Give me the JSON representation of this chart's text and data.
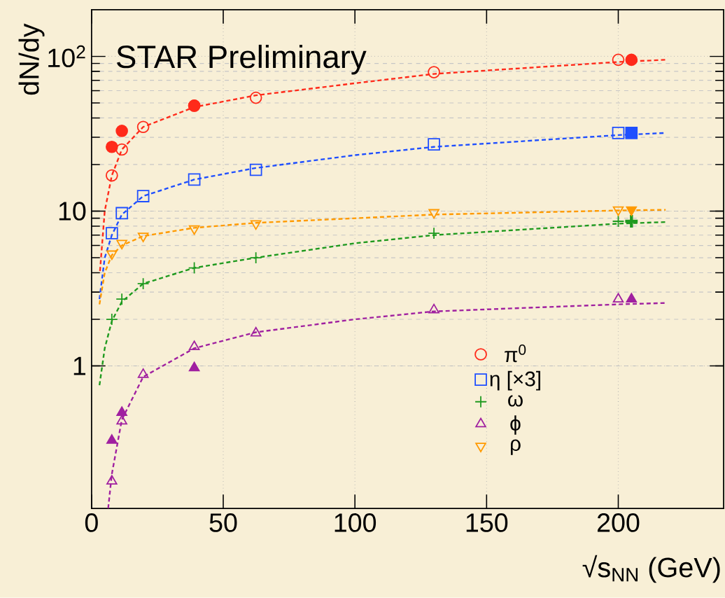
{
  "chart_data": {
    "type": "scatter",
    "xlabel": "√s$_{NN}$ (GeV)",
    "ylabel": "dN/dy",
    "annotations": [
      "STAR Preliminary"
    ],
    "xlim": [
      0,
      240
    ],
    "xticks": [
      0,
      50,
      100,
      150,
      200
    ],
    "ylim": [
      0.12,
      200
    ],
    "yticks": [
      1,
      10,
      {
        "value": 100,
        "label": "10$^{2}$"
      }
    ],
    "log": "y",
    "grid": true,
    "legend": "bottom right",
    "series": [
      {
        "name": "π$^{0}$",
        "color": "#ff2a1a",
        "marker": "circle",
        "x": [
          7.7,
          11.5,
          19.6,
          39,
          62.4,
          130,
          200
        ],
        "values": [
          17,
          25,
          35,
          48,
          54,
          79,
          95
        ]
      },
      {
        "name": "η [×3]",
        "color": "#1f4fff",
        "marker": "square",
        "x": [
          7.7,
          11.5,
          19.6,
          39,
          62.4,
          130,
          200
        ],
        "values": [
          7.2,
          9.7,
          12.5,
          16,
          18.5,
          27,
          32
        ]
      },
      {
        "name": "ω",
        "color": "#1f9a1f",
        "marker": "cross",
        "x": [
          7.7,
          11.5,
          19.6,
          39,
          62.4,
          130,
          200
        ],
        "values": [
          2.0,
          2.7,
          3.4,
          4.3,
          5.0,
          7.2,
          8.6
        ]
      },
      {
        "name": "ϕ",
        "color": "#a020a0",
        "marker": "triangle",
        "x": [
          7.7,
          11.5,
          19.6,
          39,
          62.4,
          130,
          200
        ],
        "values": [
          0.18,
          0.44,
          0.88,
          1.33,
          1.63,
          2.3,
          2.7
        ]
      },
      {
        "name": "ρ",
        "color": "#ff9a00",
        "marker": "triangle_down",
        "x": [
          7.7,
          11.5,
          19.6,
          39,
          62.4,
          130,
          200
        ],
        "values": [
          5.3,
          6.2,
          6.9,
          7.7,
          8.3,
          9.8,
          10.2
        ]
      },
      {
        "color": "#ff2a1a",
        "marker": "circle",
        "x": [
          7.7,
          11.5,
          39,
          205
        ],
        "values": [
          26,
          33,
          48,
          95
        ]
      },
      {
        "color": "#1f4fff",
        "marker": "square",
        "x": [
          205
        ],
        "values": [
          32
        ]
      },
      {
        "color": "#1f9a1f",
        "marker": "cross",
        "x": [
          205
        ],
        "values": [
          8.6
        ]
      },
      {
        "color": "#a020a0",
        "marker": "triangle",
        "x": [
          7.7,
          11.5,
          39,
          205
        ],
        "values": [
          0.33,
          0.5,
          0.97,
          2.7
        ]
      },
      {
        "color": "#ff9a00",
        "marker": "triangle_down",
        "x": [
          205
        ],
        "values": [
          10.2
        ]
      },
      {
        "type": "line",
        "line_style": "dashed",
        "color": "#ff2a1a",
        "x": [
          3.2,
          5,
          7.7,
          11.5,
          19.6,
          39,
          62.4,
          100,
          130,
          200,
          218
        ],
        "values": [
          4.1,
          10,
          17,
          25,
          35,
          47,
          56,
          67,
          77,
          92,
          95
        ]
      },
      {
        "type": "line",
        "line_style": "dashed",
        "color": "#1f4fff",
        "x": [
          3,
          5,
          7.7,
          11.5,
          19.6,
          39,
          62.4,
          100,
          130,
          200,
          218
        ],
        "values": [
          2.7,
          5,
          7,
          9.5,
          12.5,
          16,
          19,
          23,
          26,
          31,
          32
        ]
      },
      {
        "type": "line",
        "line_style": "dashed",
        "color": "#1f9a1f",
        "x": [
          3,
          5,
          7.7,
          11.5,
          19.6,
          39,
          62.4,
          100,
          130,
          200,
          218
        ],
        "values": [
          0.75,
          1.3,
          1.95,
          2.6,
          3.4,
          4.3,
          5.0,
          6.2,
          7.0,
          8.3,
          8.5
        ]
      },
      {
        "type": "line",
        "line_style": "dashed",
        "color": "#a020a0",
        "x": [
          6.3,
          7.7,
          11.5,
          19.6,
          39,
          62.4,
          100,
          130,
          200,
          218
        ],
        "values": [
          0.12,
          0.2,
          0.45,
          0.85,
          1.3,
          1.65,
          2.0,
          2.25,
          2.5,
          2.55
        ]
      },
      {
        "type": "line",
        "line_style": "dashed",
        "color": "#ff9a00",
        "x": [
          3,
          5,
          7.7,
          11.5,
          19.6,
          39,
          62.4,
          130,
          200,
          218
        ],
        "values": [
          2.5,
          4,
          5.2,
          6,
          6.9,
          7.8,
          8.4,
          9.5,
          10.1,
          10.2
        ]
      }
    ]
  }
}
